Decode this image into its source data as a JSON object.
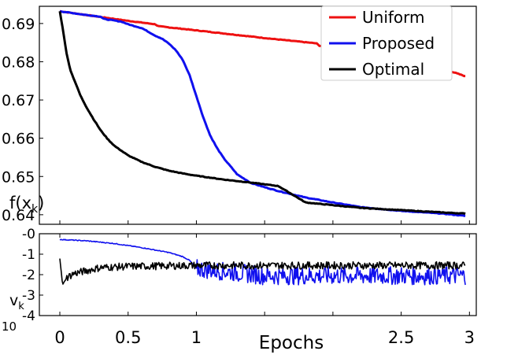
{
  "chart_data": [
    {
      "type": "line",
      "panel": "top",
      "ylabel": "f(x_k)",
      "ylabel_main": "f(x",
      "ylabel_sub": "k",
      "ylabel_close": ")",
      "xlim": [
        -0.15,
        3.05
      ],
      "ylim": [
        0.6375,
        0.6945
      ],
      "yticks": [
        0.69,
        0.68,
        0.67,
        0.66,
        0.65,
        0.64
      ],
      "ytick_labels": [
        "0.69",
        "0.68",
        "0.67",
        "0.66",
        "0.65",
        "0.64"
      ],
      "xticks": [
        0,
        0.5,
        1,
        1.5,
        2,
        2.5,
        3
      ],
      "legend_position": "top-right",
      "series": [
        {
          "name": "Uniform",
          "color": "#ee1111",
          "x": [
            0,
            0.5,
            0.7,
            0.72,
            1.0,
            1.5,
            1.88,
            1.9,
            2.3,
            2.6,
            2.97
          ],
          "y": [
            0.6932,
            0.6907,
            0.6898,
            0.6893,
            0.6882,
            0.6862,
            0.6848,
            0.6842,
            0.6825,
            0.6807,
            0.6762
          ]
        },
        {
          "name": "Proposed",
          "color": "#1010ee",
          "x": [
            0,
            0.2,
            0.3,
            0.32,
            0.45,
            0.5,
            0.6,
            0.65,
            0.7,
            0.75,
            0.8,
            0.85,
            0.9,
            0.95,
            1.0,
            1.05,
            1.1,
            1.15,
            1.2,
            1.3,
            1.4,
            1.5,
            1.6,
            1.8,
            2.0,
            2.2,
            2.5,
            2.8,
            2.97
          ],
          "y": [
            0.6932,
            0.6922,
            0.6918,
            0.6912,
            0.6905,
            0.6898,
            0.6888,
            0.6878,
            0.6868,
            0.686,
            0.6847,
            0.683,
            0.6805,
            0.6765,
            0.671,
            0.6655,
            0.6608,
            0.6575,
            0.6548,
            0.6505,
            0.6483,
            0.6472,
            0.6462,
            0.6445,
            0.6432,
            0.642,
            0.641,
            0.6403,
            0.6397
          ]
        },
        {
          "name": "Optimal",
          "color": "#000000",
          "x": [
            0,
            0.02,
            0.05,
            0.08,
            0.12,
            0.15,
            0.2,
            0.25,
            0.3,
            0.35,
            0.4,
            0.5,
            0.6,
            0.7,
            0.8,
            0.9,
            1.0,
            1.2,
            1.4,
            1.6,
            1.8,
            2.0,
            2.2,
            2.5,
            2.8,
            2.97
          ],
          "y": [
            0.6932,
            0.689,
            0.682,
            0.6775,
            0.674,
            0.6712,
            0.6678,
            0.6648,
            0.662,
            0.6598,
            0.658,
            0.6555,
            0.6538,
            0.6525,
            0.6515,
            0.6508,
            0.6502,
            0.6492,
            0.6484,
            0.6475,
            0.6432,
            0.6425,
            0.6418,
            0.6412,
            0.6406,
            0.6403
          ]
        }
      ]
    },
    {
      "type": "line",
      "panel": "bottom",
      "ylabel": "v_k",
      "ylabel_main": "v",
      "ylabel_sub": "k",
      "xlabel": "Epochs",
      "xlim": [
        -0.15,
        3.05
      ],
      "ylim": [
        -4,
        0
      ],
      "yticks": [
        0,
        -1,
        -2,
        -3,
        -4
      ],
      "ytick_labels": [
        "-0",
        "-1",
        "-2",
        "-3",
        "-4"
      ],
      "xticks": [
        0,
        0.5,
        1,
        1.5,
        2,
        2.5,
        3
      ],
      "xtick_labels": [
        "0",
        "0.5",
        "1",
        "",
        "",
        "2.5",
        "3"
      ],
      "corner_text": "10",
      "series": [
        {
          "name": "Proposed",
          "color": "#1010ee",
          "x": [
            0,
            0.2,
            0.4,
            0.6,
            0.8,
            0.9,
            0.95,
            1.0,
            1.5,
            2.0,
            2.5,
            2.97
          ],
          "y": [
            -0.28,
            -0.35,
            -0.48,
            -0.68,
            -0.92,
            -1.12,
            -1.3,
            -1.7,
            -2.05,
            -2.05,
            -2.05,
            -2.05
          ],
          "noise_after": 1.0,
          "noise_amp": 0.45
        },
        {
          "name": "Optimal",
          "color": "#000000",
          "x": [
            0,
            0.02,
            0.05,
            0.1,
            0.2,
            0.3,
            0.5,
            1.0,
            2.0,
            2.97
          ],
          "y": [
            -1.2,
            -2.5,
            -2.15,
            -1.95,
            -1.8,
            -1.65,
            -1.6,
            -1.55,
            -1.55,
            -1.55
          ],
          "noise_after": 0.05,
          "noise_amp": 0.18
        }
      ]
    }
  ]
}
